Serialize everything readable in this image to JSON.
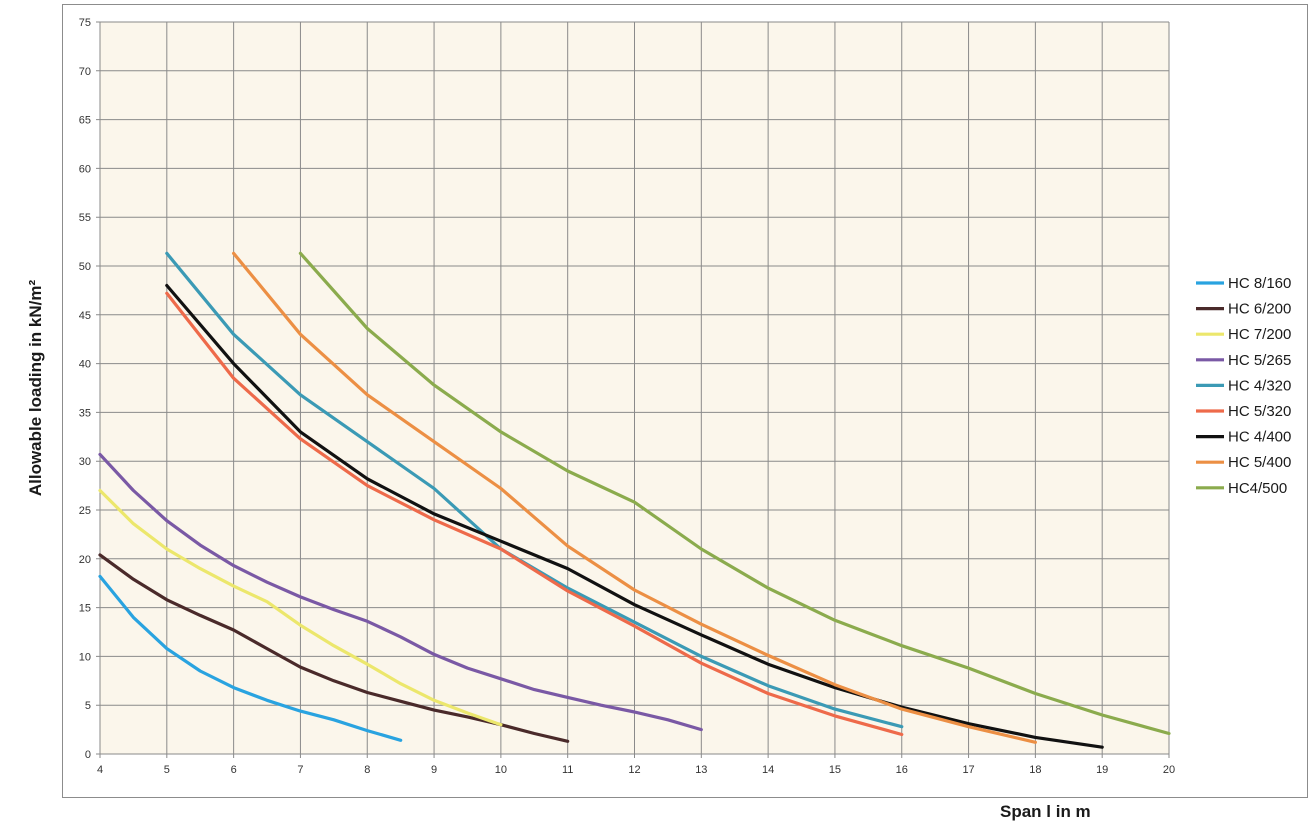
{
  "chart_data": {
    "type": "line",
    "xlabel": "Span l in m",
    "ylabel": "Allowable loading in kN/m²",
    "xlim": [
      4,
      20
    ],
    "ylim": [
      0,
      75
    ],
    "x_ticks": [
      4,
      5,
      6,
      7,
      8,
      9,
      10,
      11,
      12,
      13,
      14,
      15,
      16,
      17,
      18,
      19,
      20
    ],
    "y_ticks": [
      0,
      5,
      10,
      15,
      20,
      25,
      30,
      35,
      40,
      45,
      50,
      55,
      60,
      65,
      70,
      75
    ],
    "grid": true,
    "background": "#fbf6eb",
    "legend_position": "right",
    "series": [
      {
        "name": "HC 8/160",
        "color": "#29a3e0",
        "x": [
          4,
          4.5,
          5,
          5.5,
          6,
          6.5,
          7,
          7.5,
          8,
          8.5
        ],
        "y": [
          18.2,
          14,
          10.8,
          8.5,
          6.8,
          5.5,
          4.4,
          3.5,
          2.4,
          1.4
        ]
      },
      {
        "name": "HC 6/200",
        "color": "#4a2a2a",
        "x": [
          4,
          4.5,
          5,
          5.5,
          6,
          6.5,
          7,
          7.5,
          8,
          8.5,
          9,
          9.5,
          10,
          10.5,
          11
        ],
        "y": [
          20.4,
          17.9,
          15.8,
          14.2,
          12.7,
          10.8,
          8.9,
          7.5,
          6.3,
          5.4,
          4.5,
          3.8,
          3.0,
          2.1,
          1.3
        ]
      },
      {
        "name": "HC 7/200",
        "color": "#ece76c",
        "x": [
          4,
          4.5,
          5,
          5.5,
          6,
          6.5,
          7,
          7.5,
          8,
          8.5,
          9,
          9.5,
          10
        ],
        "y": [
          27,
          23.6,
          21,
          19,
          17.2,
          15.6,
          13.2,
          11.1,
          9.2,
          7.2,
          5.5,
          4.2,
          3.0
        ]
      },
      {
        "name": "HC 5/265",
        "color": "#7a59a5",
        "x": [
          4,
          4.5,
          5,
          5.5,
          6,
          6.5,
          7,
          7.5,
          8,
          8.5,
          9,
          9.5,
          10,
          10.5,
          11,
          11.5,
          12,
          12.5,
          13
        ],
        "y": [
          30.7,
          27,
          23.9,
          21.4,
          19.3,
          17.6,
          16.1,
          14.8,
          13.6,
          12,
          10.2,
          8.8,
          7.7,
          6.6,
          5.8,
          5.0,
          4.3,
          3.5,
          2.5
        ]
      },
      {
        "name": "HC 4/320",
        "color": "#3b9ab5",
        "x": [
          5,
          6,
          7,
          8,
          9,
          10,
          11,
          12,
          13,
          14,
          15,
          16
        ],
        "y": [
          51.3,
          43,
          36.8,
          32,
          27.2,
          21,
          17,
          13.5,
          10,
          7,
          4.6,
          2.8
        ]
      },
      {
        "name": "HC 5/320",
        "color": "#ee6a4a",
        "x": [
          5,
          6,
          7,
          8,
          9,
          10,
          11,
          12,
          13,
          14,
          15,
          16
        ],
        "y": [
          47.2,
          38.5,
          32.3,
          27.5,
          24,
          21,
          16.7,
          13.1,
          9.3,
          6.2,
          3.9,
          2.0
        ]
      },
      {
        "name": "HC 4/400",
        "color": "#111111",
        "x": [
          5,
          6,
          7,
          8,
          9,
          10,
          11,
          12,
          13,
          14,
          15,
          16,
          17,
          18,
          19
        ],
        "y": [
          48,
          40,
          33,
          28.2,
          24.6,
          21.8,
          19,
          15.3,
          12.2,
          9.2,
          6.8,
          4.8,
          3.1,
          1.7,
          0.7
        ]
      },
      {
        "name": "HC 5/400",
        "color": "#ec8f44",
        "x": [
          6,
          7,
          8,
          9,
          10,
          11,
          12,
          13,
          14,
          15,
          16,
          17,
          18
        ],
        "y": [
          51.3,
          43,
          36.8,
          32,
          27.2,
          21.3,
          16.8,
          13.3,
          10.1,
          7.1,
          4.6,
          2.8,
          1.2
        ]
      },
      {
        "name": "HC4/500",
        "color": "#8bab4d",
        "x": [
          7,
          8,
          9,
          10,
          11,
          12,
          13,
          14,
          15,
          16,
          17,
          18,
          19,
          20
        ],
        "y": [
          51.3,
          43.6,
          37.8,
          33,
          29,
          25.8,
          21,
          17,
          13.7,
          11.1,
          8.8,
          6.2,
          4,
          2.1
        ]
      }
    ]
  }
}
